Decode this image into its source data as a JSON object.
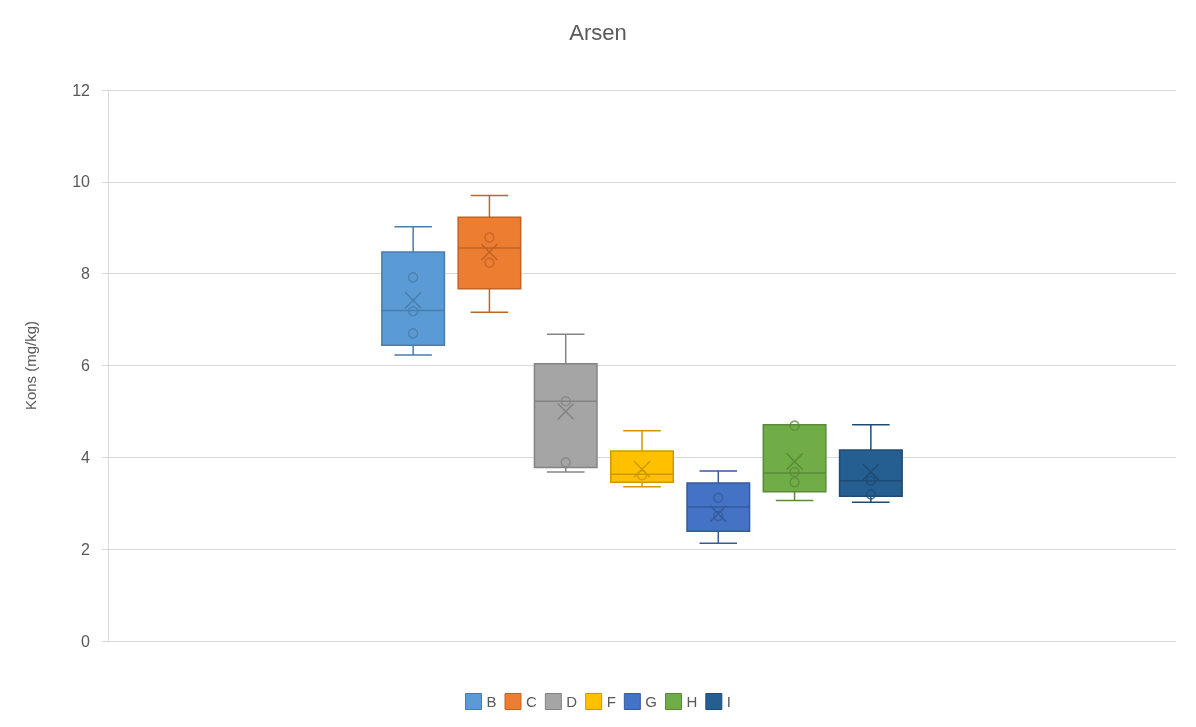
{
  "chart_data": {
    "type": "box",
    "title": "Arsen",
    "ylabel": "Kons (mg/kg)",
    "categories": [
      null
    ],
    "ylim": [
      0,
      12
    ],
    "yticks": [
      0,
      2,
      4,
      6,
      8,
      10,
      12
    ],
    "grid": "y",
    "legend": "bottom",
    "series": [
      {
        "name": "B",
        "color": "#5b9bd5",
        "boxes": [
          {
            "low": 6.23,
            "q1": 6.44,
            "median": 7.2,
            "q3": 8.47,
            "high": 9.02,
            "mean": 7.42
          }
        ]
      },
      {
        "type": "scatter",
        "color": "#497caa",
        "x": [
          null,
          null,
          null
        ],
        "values": [
          7.92,
          7.18,
          6.7
        ]
      },
      {
        "name": "C",
        "color": "#ed7d31",
        "boxes": [
          {
            "low": 7.16,
            "q1": 7.67,
            "median": 8.56,
            "q3": 9.23,
            "high": 9.7,
            "mean": 8.47
          }
        ]
      },
      {
        "type": "scatter",
        "color": "#be6427",
        "x": [
          null,
          null
        ],
        "values": [
          8.79,
          8.24
        ]
      },
      {
        "name": "D",
        "color": "#a5a5a5",
        "boxes": [
          {
            "low": 3.68,
            "q1": 3.78,
            "median": 5.22,
            "q3": 6.04,
            "high": 6.68,
            "mean": 5.0
          }
        ]
      },
      {
        "type": "scatter",
        "color": "#848484",
        "x": [
          null,
          null
        ],
        "values": [
          5.22,
          3.89
        ]
      },
      {
        "name": "F",
        "color": "#ffc000",
        "boxes": [
          {
            "low": 3.36,
            "q1": 3.46,
            "median": 3.63,
            "q3": 4.14,
            "high": 4.58,
            "mean": 3.74
          }
        ]
      },
      {
        "type": "scatter",
        "color": "#cc9a00",
        "x": [
          null
        ],
        "values": [
          3.61
        ]
      },
      {
        "name": "G",
        "color": "#4472c4",
        "boxes": [
          {
            "low": 2.13,
            "q1": 2.39,
            "median": 2.92,
            "q3": 3.44,
            "high": 3.7,
            "mean": 2.77
          }
        ]
      },
      {
        "type": "scatter",
        "color": "#365b9d",
        "x": [
          null,
          null
        ],
        "values": [
          3.12,
          2.72
        ]
      },
      {
        "name": "H",
        "color": "#70ad47",
        "boxes": [
          {
            "low": 3.06,
            "q1": 3.25,
            "median": 3.66,
            "q3": 4.71,
            "high": 4.71,
            "mean": 3.91
          }
        ]
      },
      {
        "type": "scatter",
        "color": "#5a8a39",
        "x": [
          null,
          null,
          null
        ],
        "values": [
          4.69,
          3.68,
          3.46
        ]
      },
      {
        "name": "I",
        "color": "#255e91",
        "boxes": [
          {
            "low": 3.02,
            "q1": 3.15,
            "median": 3.49,
            "q3": 4.16,
            "high": 4.71,
            "mean": 3.68
          }
        ]
      },
      {
        "type": "scatter",
        "color": "#1e4b74",
        "x": [
          null,
          null
        ],
        "values": [
          3.49,
          3.19
        ]
      }
    ]
  }
}
